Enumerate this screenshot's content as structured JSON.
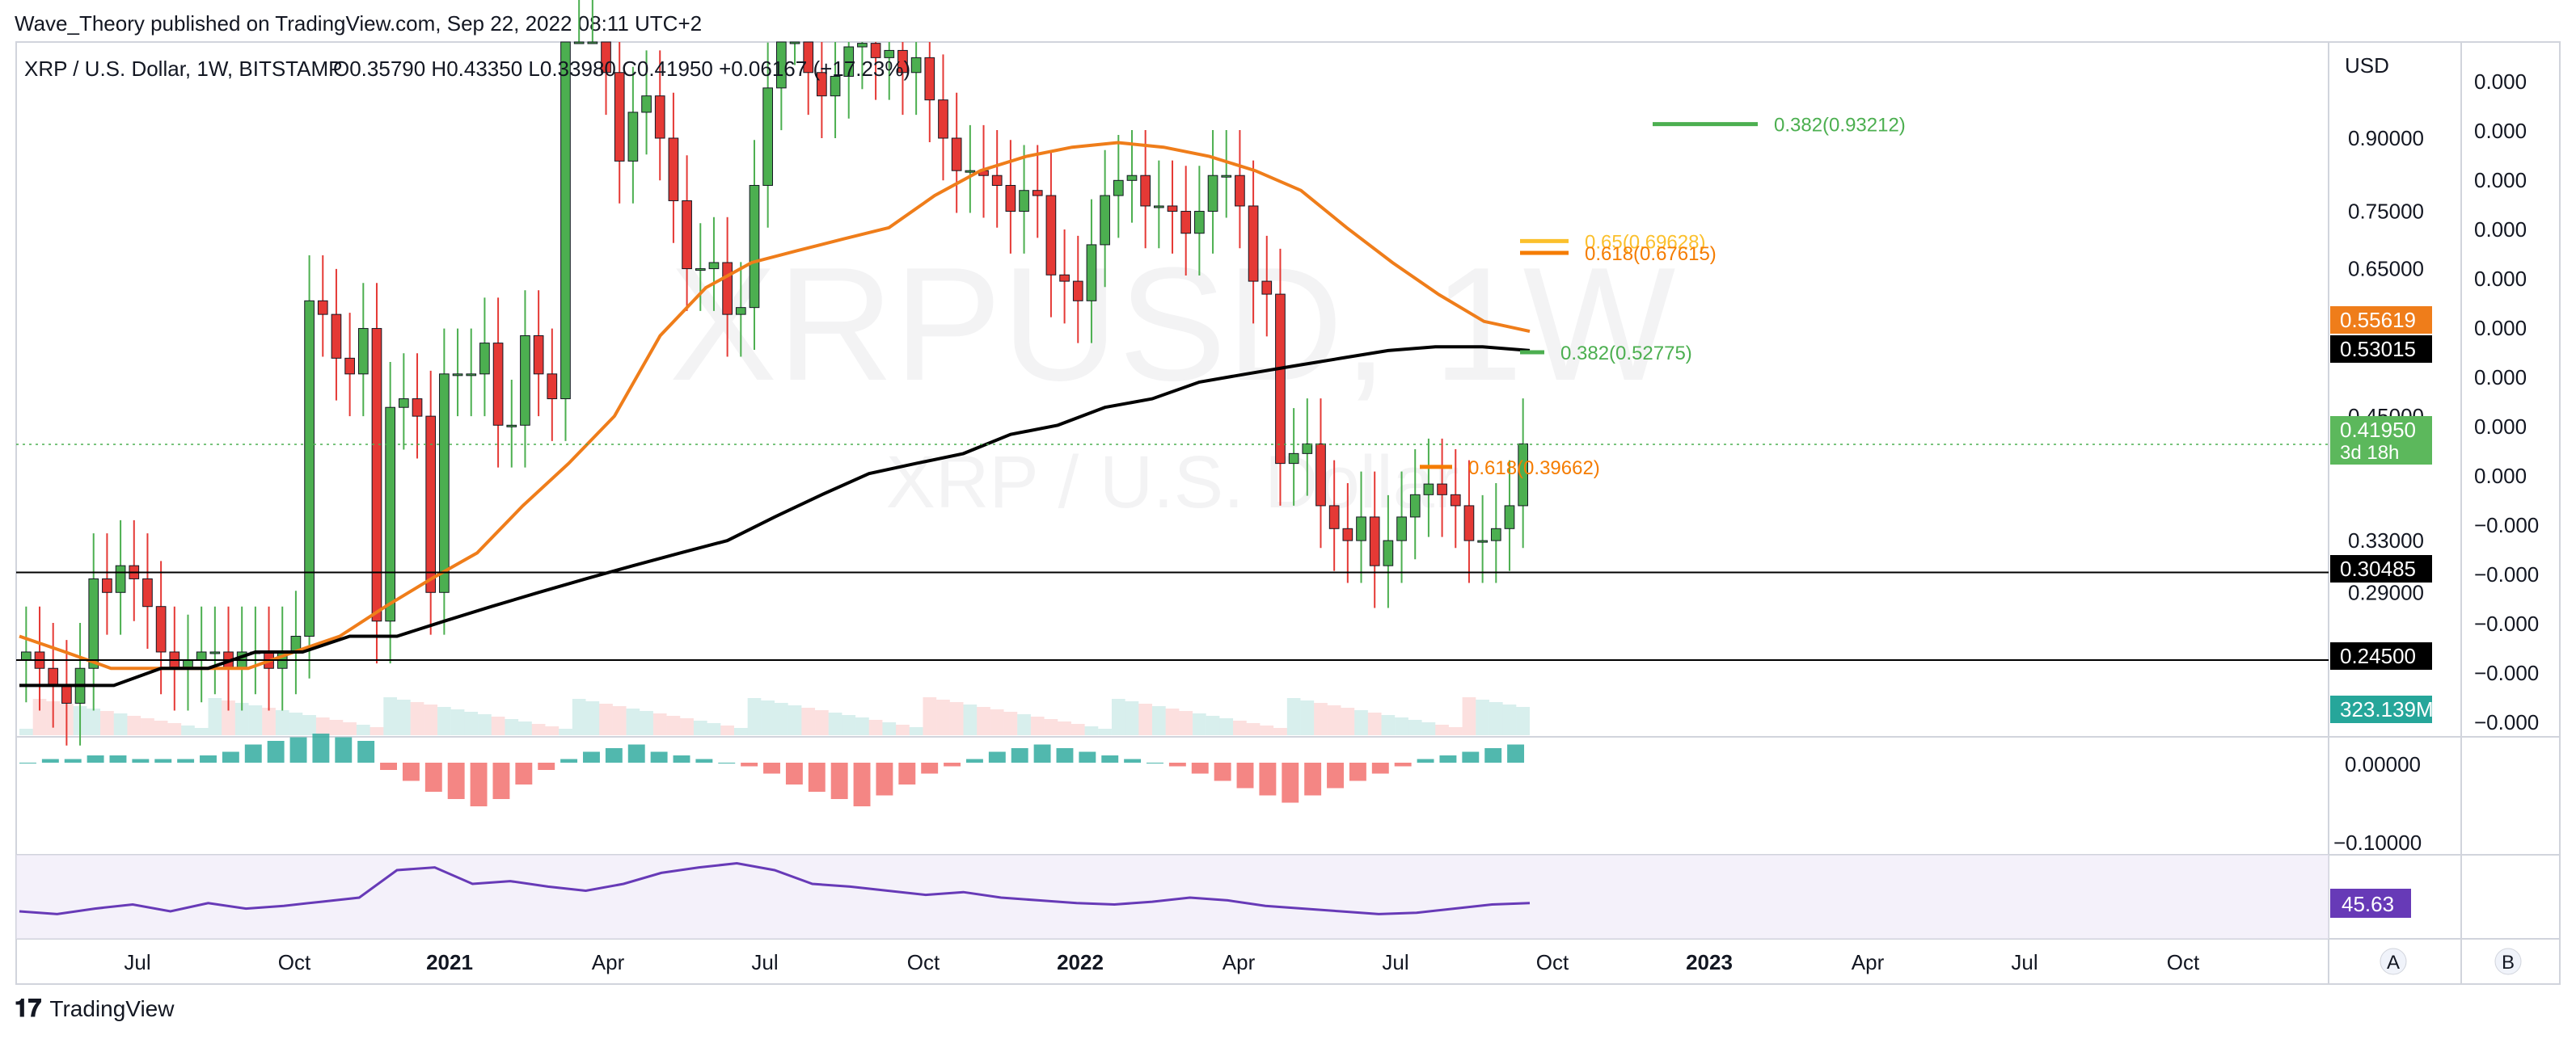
{
  "header": {
    "publisher_line": "Wave_Theory published on TradingView.com, Sep 22, 2022 08:11 UTC+2"
  },
  "footer": {
    "brand": "TradingView"
  },
  "chart_data": {
    "type": "candlestick",
    "symbol_line": "XRP / U.S. Dollar, 1W, BITSTAMP",
    "ohlc_line": "O0.35790  H0.43350  L0.33980  C0.41950  +0.06167 (+17.23%)",
    "watermark_symbol": "XRPUSD, 1W",
    "watermark_name": "XRP / U.S. Dollar",
    "currency": "USD",
    "price_axis_labels": [
      "0.90000",
      "0.75000",
      "0.65000",
      "0.45000",
      "0.33000",
      "0.29000",
      "0.24500"
    ],
    "secondary_axis_labels": [
      "0.000",
      "0.000",
      "0.000",
      "0.000",
      "0.000",
      "0.000",
      "0.000",
      "0.000",
      "0.000",
      "−0.000",
      "−0.000",
      "−0.000",
      "−0.000",
      "−0.000"
    ],
    "x_tick_labels": [
      "Jul",
      "Oct",
      "2021",
      "Apr",
      "Jul",
      "Oct",
      "2022",
      "Apr",
      "Jul",
      "Oct",
      "2023",
      "Apr",
      "Jul",
      "Oct"
    ],
    "x_tick_bold": [
      "2021",
      "2022",
      "2023"
    ],
    "price_markers": [
      {
        "label": "0.55619",
        "color": "#ef7d1a"
      },
      {
        "label": "0.53015",
        "color": "#000000"
      },
      {
        "label": "0.41950",
        "sub": "3d 18h",
        "color": "#5cb85c"
      },
      {
        "label": "0.30485",
        "color": "#000000"
      },
      {
        "label": "0.24500",
        "color": "#000000"
      },
      {
        "label": "323.139M",
        "color": "#26a69a"
      }
    ],
    "horizontal_levels": [
      0.30485,
      0.245
    ],
    "fib_levels": [
      {
        "label": "0.382(0.93212)",
        "color": "#4caf50"
      },
      {
        "label": "0.65(0.69628)",
        "color": "#fbc02d"
      },
      {
        "label": "0.618(0.67615)",
        "color": "#f57c00"
      },
      {
        "label": "0.382(0.52775)",
        "color": "#4caf50"
      },
      {
        "label": "0.618(0.39662)",
        "color": "#f57c00"
      }
    ],
    "macd_axis_labels": [
      "0.00000",
      "−0.10000"
    ],
    "rsi_value_label": "45.63",
    "rsi_color": "#673ab7",
    "scale_buttons": [
      "A",
      "B"
    ],
    "colors": {
      "up": "#4caf50",
      "down": "#e53935",
      "ema_orange": "#ef7d1a",
      "ma_black": "#000000"
    },
    "weekly_closes_approx": [
      0.25,
      0.24,
      0.23,
      0.22,
      0.24,
      0.3,
      0.29,
      0.31,
      0.3,
      0.28,
      0.25,
      0.24,
      0.245,
      0.25,
      0.25,
      0.24,
      0.25,
      0.25,
      0.24,
      0.25,
      0.26,
      0.6,
      0.58,
      0.52,
      0.5,
      0.56,
      0.27,
      0.46,
      0.47,
      0.45,
      0.29,
      0.5,
      0.5,
      0.5,
      0.54,
      0.44,
      0.44,
      0.55,
      0.5,
      0.47,
      1.42,
      1.5,
      1.56,
      1.06,
      0.85,
      0.96,
      1.0,
      0.9,
      0.77,
      0.65,
      0.65,
      0.66,
      0.58,
      0.59,
      0.8,
      1.02,
      1.2,
      1.24,
      1.06,
      1.0,
      1.05,
      1.13,
      1.14,
      1.1,
      1.12,
      1.06,
      1.1,
      0.99,
      0.9,
      0.83,
      0.83,
      0.82,
      0.8,
      0.75,
      0.79,
      0.78,
      0.64,
      0.63,
      0.6,
      0.69,
      0.78,
      0.81,
      0.82,
      0.76,
      0.76,
      0.75,
      0.71,
      0.75,
      0.82,
      0.82,
      0.76,
      0.63,
      0.61,
      0.4,
      0.41,
      0.42,
      0.36,
      0.34,
      0.33,
      0.35,
      0.31,
      0.33,
      0.35,
      0.37,
      0.38,
      0.37,
      0.36,
      0.33,
      0.33,
      0.34,
      0.36,
      0.42
    ],
    "ma200_approx": [
      0.23,
      0.23,
      0.23,
      0.24,
      0.24,
      0.25,
      0.25,
      0.26,
      0.26,
      0.27,
      0.28,
      0.29,
      0.3,
      0.31,
      0.32,
      0.33,
      0.35,
      0.37,
      0.39,
      0.4,
      0.41,
      0.43,
      0.44,
      0.46,
      0.47,
      0.49,
      0.5,
      0.51,
      0.52,
      0.53,
      0.535,
      0.535,
      0.53
    ],
    "ema_approx": [
      0.26,
      0.25,
      0.24,
      0.24,
      0.24,
      0.24,
      0.25,
      0.26,
      0.28,
      0.3,
      0.32,
      0.36,
      0.4,
      0.45,
      0.55,
      0.62,
      0.66,
      0.68,
      0.7,
      0.72,
      0.78,
      0.83,
      0.86,
      0.88,
      0.89,
      0.88,
      0.86,
      0.83,
      0.79,
      0.72,
      0.66,
      0.61,
      0.57,
      0.556
    ],
    "rsi_approx": [
      40,
      38,
      42,
      45,
      40,
      46,
      42,
      44,
      47,
      50,
      70,
      72,
      60,
      62,
      58,
      55,
      60,
      68,
      72,
      75,
      70,
      60,
      58,
      55,
      52,
      54,
      50,
      48,
      46,
      45,
      47,
      50,
      48,
      44,
      42,
      40,
      38,
      39,
      42,
      45,
      46
    ],
    "macd_hist_approx": [
      0,
      1,
      1,
      2,
      2,
      1,
      1,
      1,
      2,
      3,
      5,
      6,
      7,
      8,
      7,
      6,
      -2,
      -5,
      -8,
      -10,
      -12,
      -10,
      -6,
      -2,
      1,
      3,
      4,
      5,
      3,
      2,
      1,
      0,
      -1,
      -3,
      -6,
      -8,
      -10,
      -12,
      -9,
      -6,
      -3,
      -1,
      1,
      3,
      4,
      5,
      4,
      3,
      2,
      1,
      0,
      -1,
      -3,
      -5,
      -7,
      -9,
      -11,
      -9,
      -7,
      -5,
      -3,
      -1,
      1,
      2,
      3,
      4,
      5
    ]
  }
}
